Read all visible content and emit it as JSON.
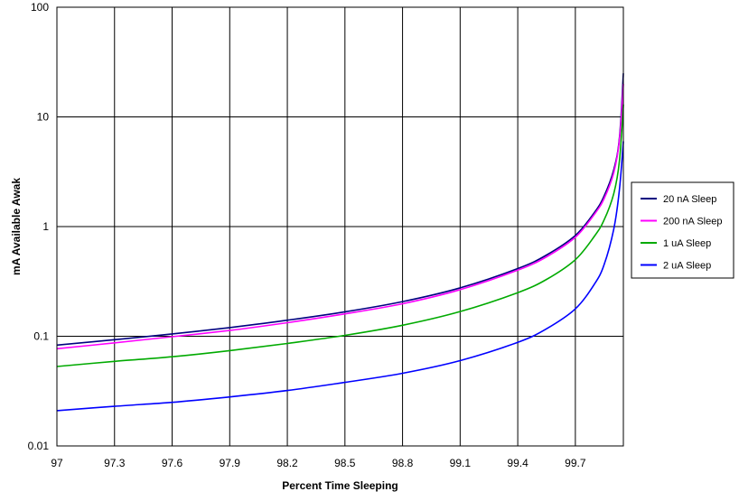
{
  "chart_data": {
    "type": "line",
    "title": "",
    "xlabel": "Percent Time Sleeping",
    "ylabel": "mA Available Awak",
    "y_scale": "log",
    "xlim": [
      97,
      99.95
    ],
    "ylim": [
      0.01,
      100
    ],
    "x_ticks": [
      "97",
      "97.3",
      "97.6",
      "97.9",
      "98.2",
      "98.5",
      "98.8",
      "99.1",
      "99.4",
      "99.7"
    ],
    "y_ticks": [
      "0.01",
      "0.1",
      "1",
      "10",
      "100"
    ],
    "grid": true,
    "legend_position": "right",
    "series": [
      {
        "name": "20 nA Sleep",
        "color": "#000080",
        "x": [
          97,
          97.3,
          97.6,
          97.9,
          98.2,
          98.5,
          98.8,
          99.1,
          99.4,
          99.55,
          99.7,
          99.8,
          99.85,
          99.9,
          99.93,
          99.95
        ],
        "y": [
          0.083,
          0.093,
          0.105,
          0.12,
          0.14,
          0.167,
          0.207,
          0.276,
          0.414,
          0.55,
          0.83,
          1.35,
          1.9,
          3.3,
          6.5,
          25
        ]
      },
      {
        "name": "200 nA Sleep",
        "color": "#ff00ff",
        "x": [
          97,
          97.3,
          97.6,
          97.9,
          98.2,
          98.5,
          98.8,
          99.1,
          99.4,
          99.55,
          99.7,
          99.8,
          99.85,
          99.9,
          99.93,
          99.95
        ],
        "y": [
          0.077,
          0.087,
          0.099,
          0.113,
          0.133,
          0.16,
          0.198,
          0.266,
          0.4,
          0.53,
          0.8,
          1.3,
          1.8,
          3.1,
          6.2,
          20
        ]
      },
      {
        "name": "1 uA Sleep",
        "color": "#00aa00",
        "x": [
          97,
          97.3,
          97.6,
          97.9,
          98.2,
          98.5,
          98.8,
          99.1,
          99.4,
          99.55,
          99.7,
          99.8,
          99.85,
          99.9,
          99.93,
          99.95
        ],
        "y": [
          0.053,
          0.059,
          0.065,
          0.074,
          0.086,
          0.102,
          0.126,
          0.168,
          0.25,
          0.33,
          0.5,
          0.82,
          1.15,
          2.0,
          4.0,
          13
        ]
      },
      {
        "name": "2 uA Sleep",
        "color": "#0000ff",
        "x": [
          97,
          97.3,
          97.6,
          97.9,
          98.2,
          98.5,
          98.8,
          99.1,
          99.4,
          99.55,
          99.7,
          99.8,
          99.85,
          99.9,
          99.93,
          99.95
        ],
        "y": [
          0.021,
          0.023,
          0.025,
          0.028,
          0.032,
          0.038,
          0.046,
          0.06,
          0.088,
          0.117,
          0.178,
          0.3,
          0.45,
          0.95,
          2.2,
          6.0
        ]
      }
    ]
  }
}
